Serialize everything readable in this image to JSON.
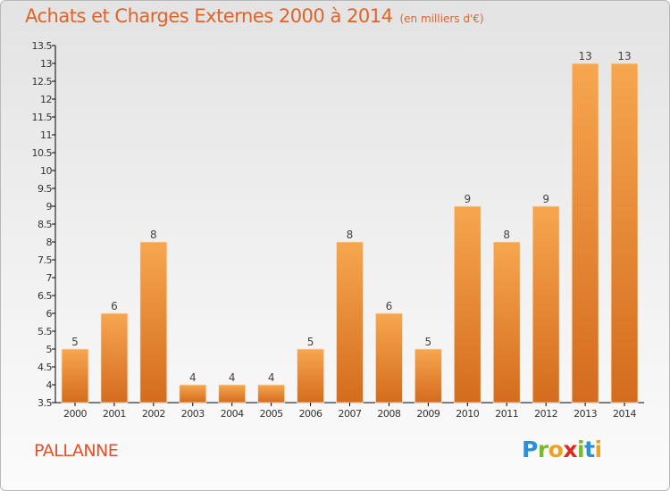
{
  "chart_data": {
    "type": "bar",
    "title": "Achats et Charges Externes 2000 à 2014",
    "subtitle": "(en milliers d'€)",
    "categories": [
      "2000",
      "2001",
      "2002",
      "2003",
      "2004",
      "2005",
      "2006",
      "2007",
      "2008",
      "2009",
      "2010",
      "2011",
      "2012",
      "2013",
      "2014"
    ],
    "values": [
      5,
      6,
      8,
      4,
      4,
      4,
      5,
      8,
      6,
      5,
      9,
      8,
      9,
      13,
      13
    ],
    "data_labels": [
      "5",
      "6",
      "8",
      "4",
      "4",
      "4",
      "5",
      "8",
      "6",
      "5",
      "9",
      "8",
      "9",
      "13",
      "13"
    ],
    "ylim": [
      3.5,
      13.5
    ],
    "yticks": [
      "3.5",
      "4",
      "4.5",
      "5",
      "5.5",
      "6",
      "6.5",
      "7",
      "7.5",
      "8",
      "8.5",
      "9",
      "9.5",
      "10",
      "10.5",
      "11",
      "11.5",
      "12",
      "12.5",
      "13",
      "13.5"
    ],
    "grid": false,
    "bar_color_top": "#f7a650",
    "bar_color_bottom": "#d46c1e"
  },
  "commune": "PALLANNE",
  "logo": {
    "text": "Proxiti",
    "letter_colors": [
      "#2e8fd6",
      "#7ab82e",
      "#f0a21e",
      "#e0281e",
      "#7ab82e",
      "#2e8fd6",
      "#f0a21e"
    ]
  },
  "colors": {
    "title": "#e06428",
    "axis": "#000000"
  }
}
